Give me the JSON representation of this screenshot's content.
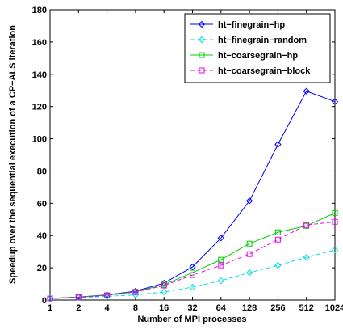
{
  "chart_data": {
    "type": "line",
    "title": "",
    "xlabel": "Number of MPI processes",
    "ylabel": "Speedup over the sequential execution of a CP−ALS iteration",
    "categories": [
      "1",
      "2",
      "4",
      "8",
      "16",
      "32",
      "64",
      "128",
      "256",
      "512",
      "1024"
    ],
    "ylim": [
      0,
      180
    ],
    "yticks": [
      "0",
      "20",
      "40",
      "60",
      "80",
      "100",
      "120",
      "140",
      "160",
      "180"
    ],
    "grid": false,
    "legend_position": "top-right",
    "series": [
      {
        "name": "ht−finegrain−hp",
        "color": "#0000ff",
        "dash": "solid",
        "marker": "diamond",
        "values": [
          1,
          1.9,
          3.2,
          5.5,
          10.5,
          20.5,
          38.5,
          61.5,
          96.5,
          129.5,
          123
        ]
      },
      {
        "name": "ht−finegrain−random",
        "color": "#00e0e0",
        "dash": "dashed",
        "marker": "diamond",
        "values": [
          1,
          1.5,
          2.3,
          3.2,
          5,
          8,
          12,
          17,
          21.5,
          26.5,
          31
        ]
      },
      {
        "name": "ht−coarsegrain−hp",
        "color": "#00cc00",
        "dash": "solid",
        "marker": "square",
        "values": [
          1,
          1.8,
          3,
          5.2,
          9.5,
          17,
          25,
          35,
          42,
          46,
          54
        ]
      },
      {
        "name": "ht−coarsegrain−block",
        "color": "#ee00ee",
        "dash": "dashed",
        "marker": "square",
        "values": [
          1,
          1.7,
          2.9,
          5,
          9,
          15.5,
          21.5,
          28.5,
          37.5,
          46.5,
          48.5
        ]
      }
    ]
  }
}
